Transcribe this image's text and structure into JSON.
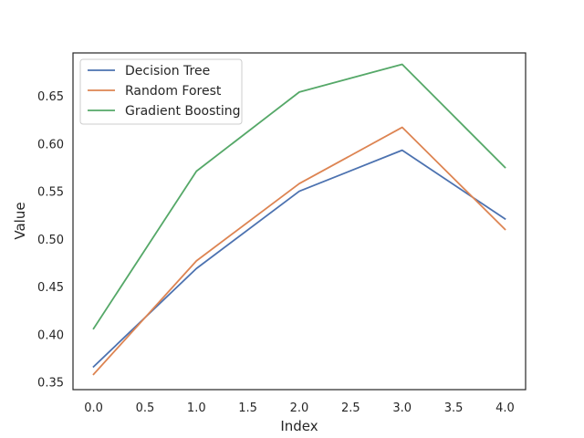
{
  "chart_data": {
    "type": "line",
    "title": "",
    "xlabel": "Index",
    "ylabel": "Value",
    "x": [
      0,
      1,
      2,
      3,
      4
    ],
    "xlim": [
      -0.2,
      4.2
    ],
    "ylim": [
      0.342,
      0.695
    ],
    "xticks": [
      0.0,
      0.5,
      1.0,
      1.5,
      2.0,
      2.5,
      3.0,
      3.5,
      4.0
    ],
    "xtick_labels": [
      "0.0",
      "0.5",
      "1.0",
      "1.5",
      "2.0",
      "2.5",
      "3.0",
      "3.5",
      "4.0"
    ],
    "yticks": [
      0.35,
      0.4,
      0.45,
      0.5,
      0.55,
      0.6,
      0.65
    ],
    "ytick_labels": [
      "0.35",
      "0.40",
      "0.45",
      "0.50",
      "0.55",
      "0.60",
      "0.65"
    ],
    "grid": false,
    "legend_position": "top-left",
    "series": [
      {
        "name": "Decision Tree",
        "color": "#4c72b0",
        "values": [
          0.366,
          0.469,
          0.55,
          0.593,
          0.521
        ]
      },
      {
        "name": "Random Forest",
        "color": "#dd8452",
        "values": [
          0.358,
          0.477,
          0.558,
          0.617,
          0.51
        ]
      },
      {
        "name": "Gradient Boosting",
        "color": "#55a868",
        "values": [
          0.406,
          0.571,
          0.654,
          0.683,
          0.575
        ]
      }
    ]
  }
}
